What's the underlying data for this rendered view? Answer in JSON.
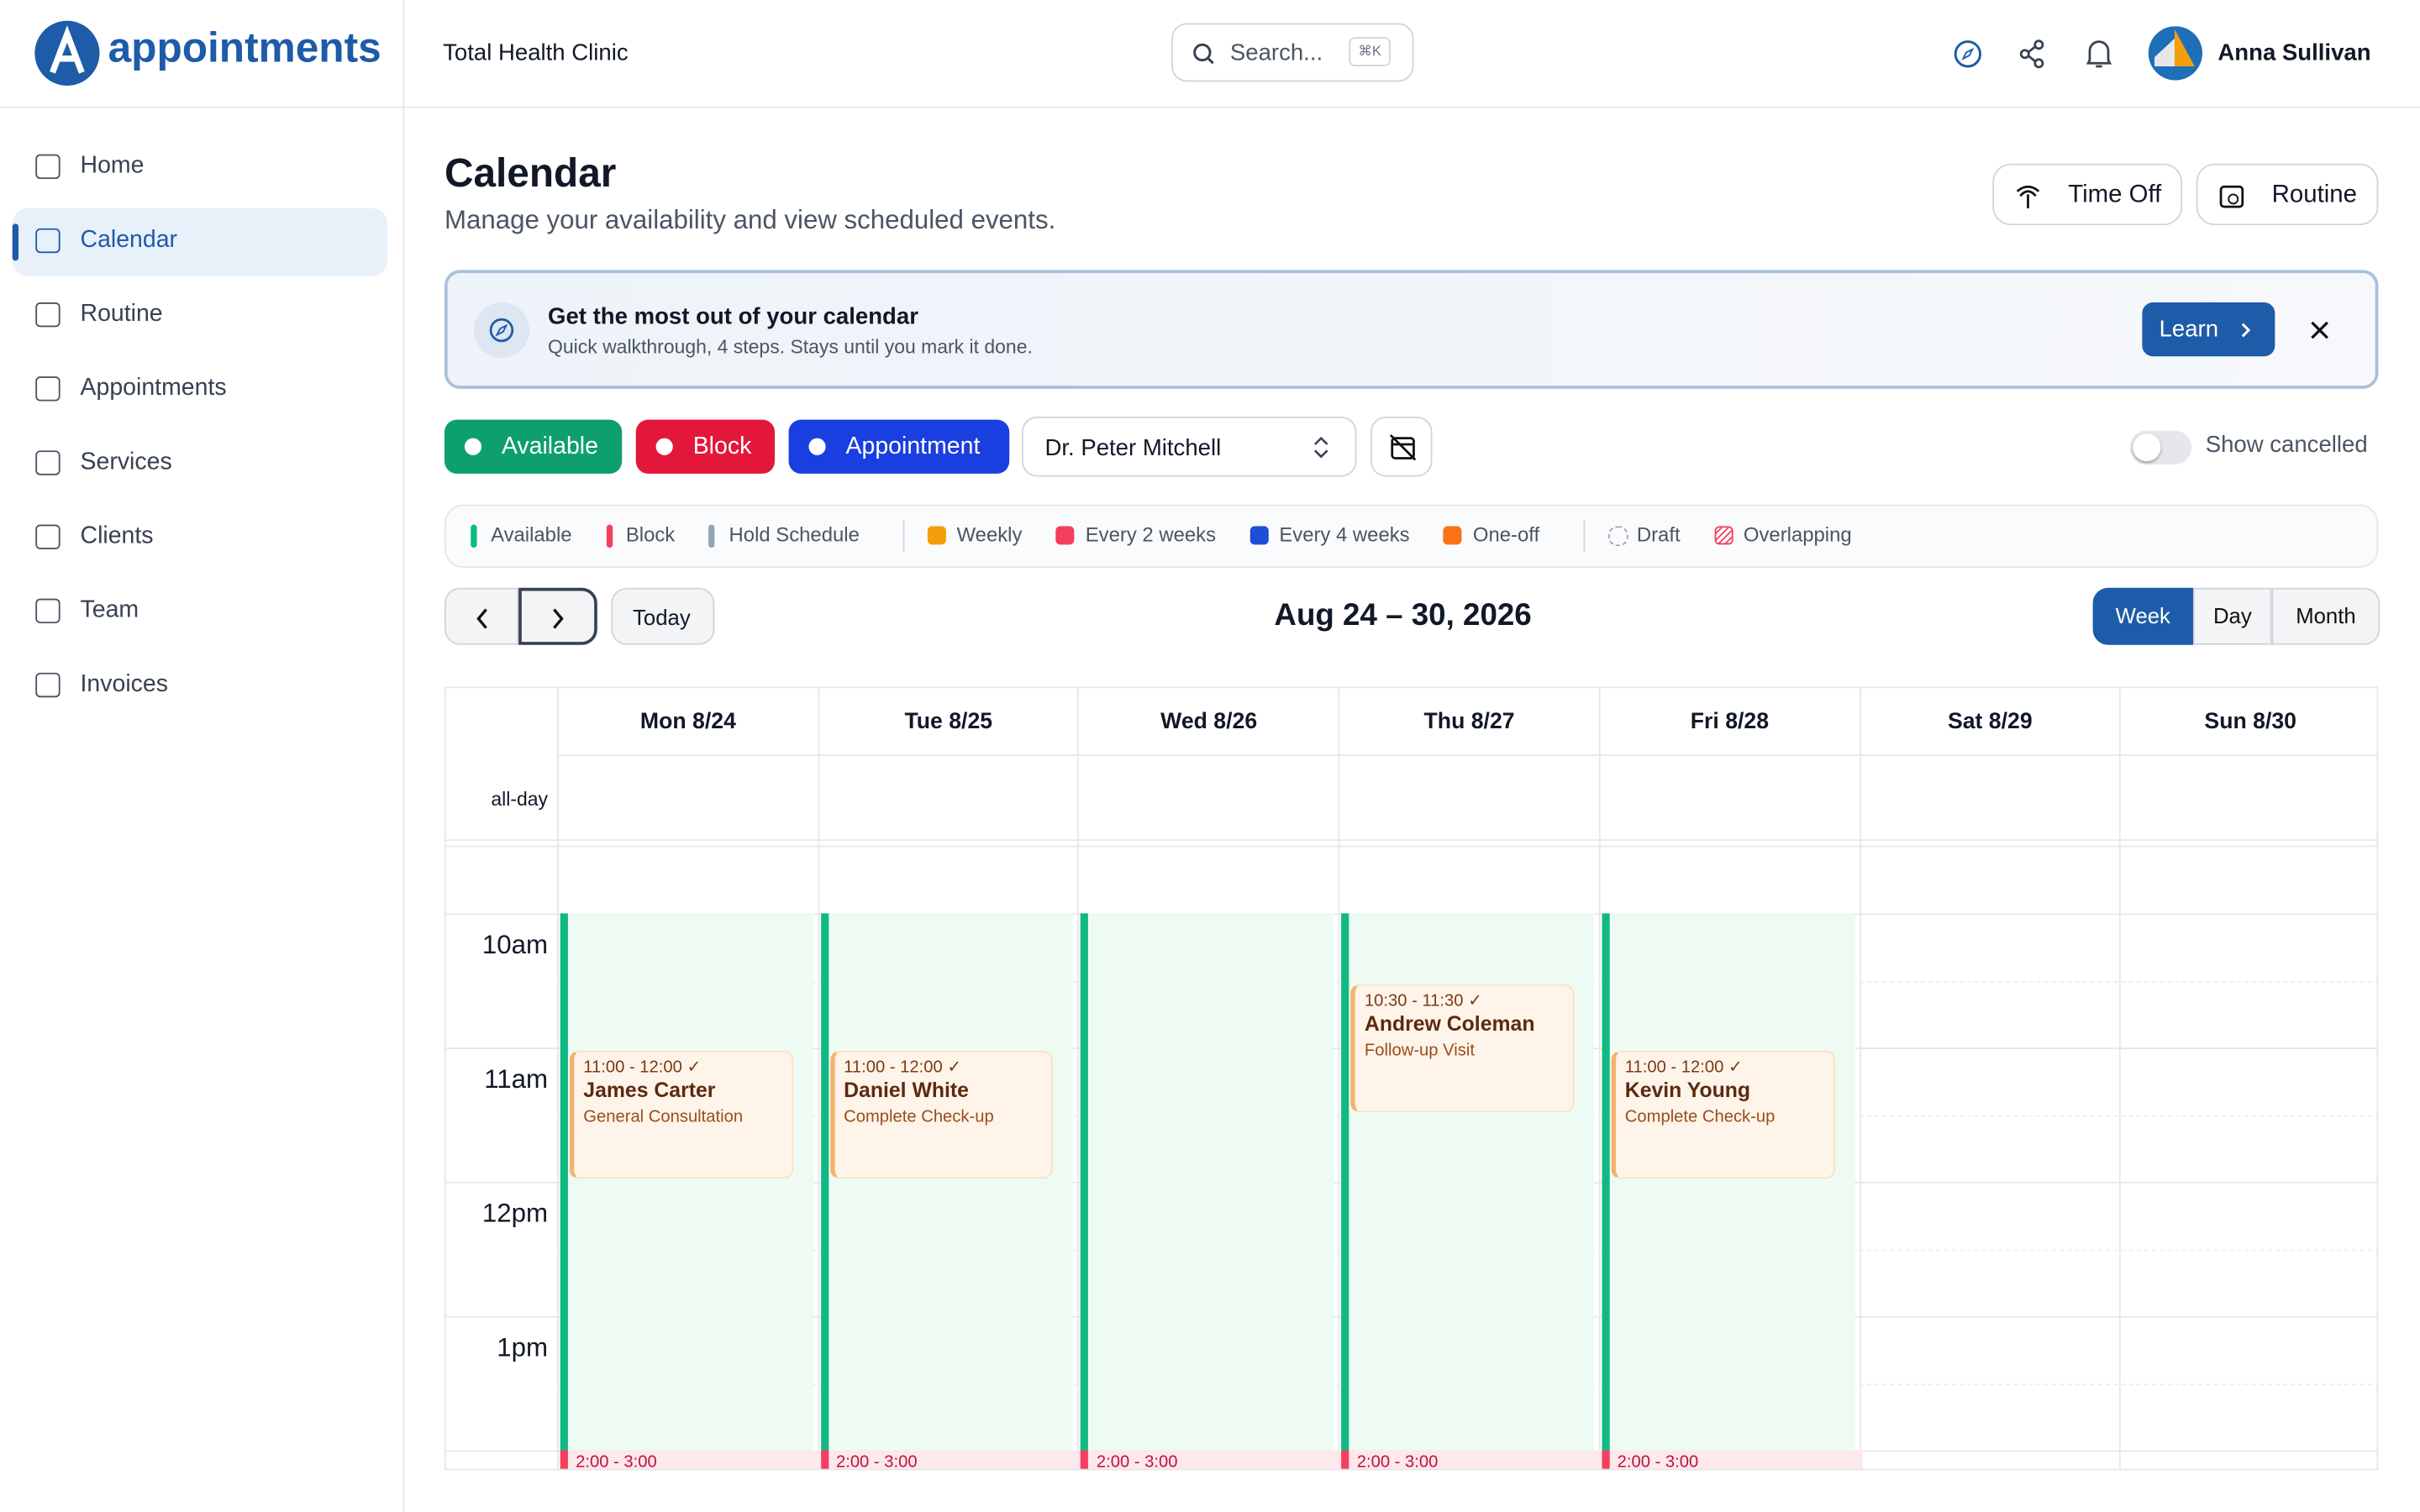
{
  "header": {
    "logo": "appointments",
    "clinic": "Total Health Clinic",
    "search": "Search...",
    "shortcut": "⌘K",
    "user": "Anna Sullivan"
  },
  "nav": [
    "Home",
    "Calendar",
    "Routine",
    "Appointments",
    "Services",
    "Clients",
    "Team",
    "Invoices"
  ],
  "page": {
    "title": "Calendar",
    "subtitle": "Manage your availability and view scheduled events.",
    "buttons": [
      "Time Off",
      "Routine"
    ]
  },
  "banner": {
    "title": "Get the most out of your calendar",
    "text": "Quick walkthrough, 4 steps. Stays until you mark it done.",
    "button": "Learn"
  },
  "toolbar": {
    "buttons": [
      {
        "label": "Available",
        "color": "#0e9f6e"
      },
      {
        "label": "Block",
        "color": "#e3173a"
      },
      {
        "label": "Appointment",
        "color": "#1a3fe0"
      }
    ],
    "doctor": "Dr. Peter Mitchell",
    "toggle": "Show cancelled"
  },
  "legend": [
    {
      "label": "Available",
      "color": "#10b981",
      "shape": "bar"
    },
    {
      "label": "Block",
      "color": "#f43f5e",
      "shape": "bar"
    },
    {
      "label": "Hold Schedule",
      "color": "#94a3b8",
      "shape": "bar"
    },
    {
      "label": "Weekly",
      "color": "#f59e0b",
      "shape": "square"
    },
    {
      "label": "Every 2 weeks",
      "color": "#f43f5e",
      "shape": "square"
    },
    {
      "label": "Every 4 weeks",
      "color": "#1d4ed8",
      "shape": "square"
    },
    {
      "label": "One-off",
      "color": "#f97316",
      "shape": "square"
    },
    {
      "label": "Draft",
      "color": "#9ca3af",
      "shape": "dashed"
    },
    {
      "label": "Overlapping",
      "color": "#f43f5e",
      "shape": "hatch"
    }
  ],
  "controls": {
    "today": "Today",
    "range": "Aug 24 – 30, 2026",
    "views": [
      "Week",
      "Day",
      "Month"
    ]
  },
  "calendar": {
    "allday": "all-day",
    "hours": [
      "10am",
      "11am",
      "12pm",
      "1pm"
    ],
    "days": [
      {
        "label": "Mon 8/24",
        "available": true,
        "block": "2:00 - 3:00",
        "events": [
          {
            "time": "11:00 - 12:00 ✓",
            "name": "James Carter",
            "service": "General Consultation"
          }
        ]
      },
      {
        "label": "Tue 8/25",
        "available": true,
        "block": "2:00 - 3:00",
        "events": [
          {
            "time": "11:00 - 12:00 ✓",
            "name": "Daniel White",
            "service": "Complete Check-up"
          }
        ]
      },
      {
        "label": "Wed 8/26",
        "available": true,
        "block": "2:00 - 3:00",
        "events": []
      },
      {
        "label": "Thu 8/27",
        "available": true,
        "block": "2:00 - 3:00",
        "events": [
          {
            "time": "10:30 - 11:30 ✓",
            "name": "Andrew Coleman",
            "service": "Follow-up Visit"
          }
        ]
      },
      {
        "label": "Fri 8/28",
        "available": true,
        "block": "2:00 - 3:00",
        "events": [
          {
            "time": "11:00 - 12:00 ✓",
            "name": "Kevin Young",
            "service": "Complete Check-up"
          }
        ]
      },
      {
        "label": "Sat 8/29",
        "available": false,
        "events": []
      },
      {
        "label": "Sun 8/30",
        "available": false,
        "events": []
      }
    ]
  }
}
